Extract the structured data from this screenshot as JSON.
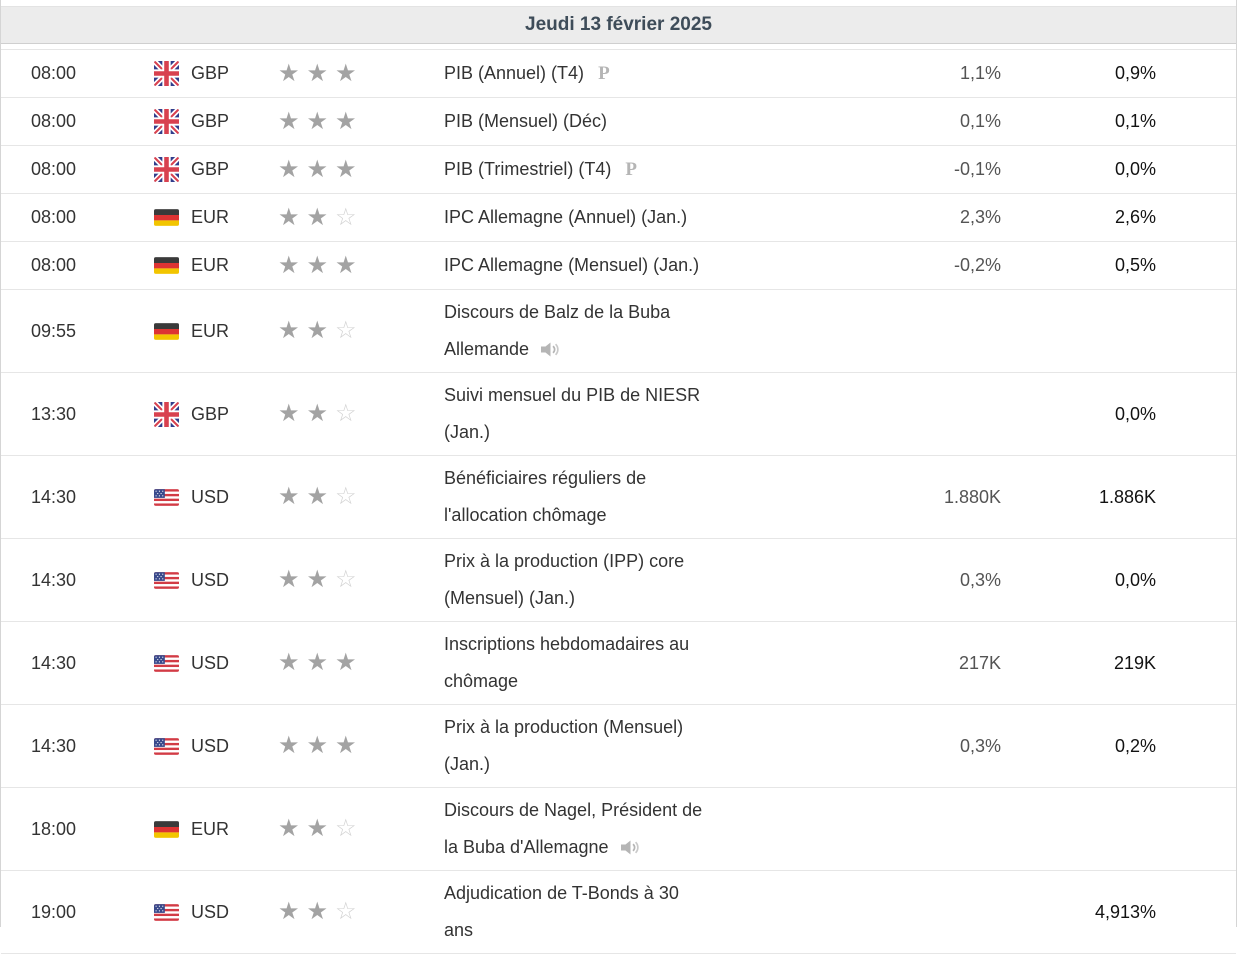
{
  "calendar": {
    "date_header": "Jeudi 13 février 2025"
  },
  "icons": {
    "star_filled_glyph": "★",
    "star_empty_glyph": "☆",
    "preliminary_glyph": "P"
  },
  "colors": {
    "header_bg": "#ececec",
    "header_text": "#3e4c59",
    "star_filled": "#a3a3a3",
    "star_empty": "#d2d2d2",
    "forecast_text": "#545454",
    "previous_text": "#121212"
  },
  "rows": [
    {
      "time": "08:00",
      "country": "gb",
      "currency": "GBP",
      "importance": 3,
      "event": "PIB (Annuel) (T4)",
      "preliminary": true,
      "speech": false,
      "forecast": "1,1%",
      "previous": "0,9%"
    },
    {
      "time": "08:00",
      "country": "gb",
      "currency": "GBP",
      "importance": 3,
      "event": "PIB (Mensuel) (Déc)",
      "preliminary": false,
      "speech": false,
      "forecast": "0,1%",
      "previous": "0,1%"
    },
    {
      "time": "08:00",
      "country": "gb",
      "currency": "GBP",
      "importance": 3,
      "event": "PIB (Trimestriel) (T4)",
      "preliminary": true,
      "speech": false,
      "forecast": "-0,1%",
      "previous": "0,0%"
    },
    {
      "time": "08:00",
      "country": "de",
      "currency": "EUR",
      "importance": 2,
      "event": "IPC Allemagne (Annuel) (Jan.)",
      "preliminary": false,
      "speech": false,
      "forecast": "2,3%",
      "previous": "2,6%"
    },
    {
      "time": "08:00",
      "country": "de",
      "currency": "EUR",
      "importance": 3,
      "event": "IPC Allemagne (Mensuel) (Jan.)",
      "preliminary": false,
      "speech": false,
      "forecast": "-0,2%",
      "previous": "0,5%"
    },
    {
      "time": "09:55",
      "country": "de",
      "currency": "EUR",
      "importance": 2,
      "event": "Discours de Balz de la Buba Allemande",
      "preliminary": false,
      "speech": true,
      "forecast": "",
      "previous": ""
    },
    {
      "time": "13:30",
      "country": "gb",
      "currency": "GBP",
      "importance": 2,
      "event": "Suivi mensuel du PIB de NIESR (Jan.)",
      "preliminary": false,
      "speech": false,
      "forecast": "",
      "previous": "0,0%"
    },
    {
      "time": "14:30",
      "country": "us",
      "currency": "USD",
      "importance": 2,
      "event": "Bénéficiaires réguliers de l'allocation chômage",
      "preliminary": false,
      "speech": false,
      "forecast": "1.880K",
      "previous": "1.886K"
    },
    {
      "time": "14:30",
      "country": "us",
      "currency": "USD",
      "importance": 2,
      "event": "Prix à la production (IPP) core (Mensuel) (Jan.)",
      "preliminary": false,
      "speech": false,
      "forecast": "0,3%",
      "previous": "0,0%"
    },
    {
      "time": "14:30",
      "country": "us",
      "currency": "USD",
      "importance": 3,
      "event": "Inscriptions hebdomadaires au chômage",
      "preliminary": false,
      "speech": false,
      "forecast": "217K",
      "previous": "219K"
    },
    {
      "time": "14:30",
      "country": "us",
      "currency": "USD",
      "importance": 3,
      "event": "Prix à la production (Mensuel) (Jan.)",
      "preliminary": false,
      "speech": false,
      "forecast": "0,3%",
      "previous": "0,2%"
    },
    {
      "time": "18:00",
      "country": "de",
      "currency": "EUR",
      "importance": 2,
      "event": "Discours de Nagel, Président de la Buba d'Allemagne",
      "preliminary": false,
      "speech": true,
      "forecast": "",
      "previous": ""
    },
    {
      "time": "19:00",
      "country": "us",
      "currency": "USD",
      "importance": 2,
      "event": "Adjudication de T-Bonds à 30 ans",
      "preliminary": false,
      "speech": false,
      "forecast": "",
      "previous": "4,913%"
    }
  ]
}
